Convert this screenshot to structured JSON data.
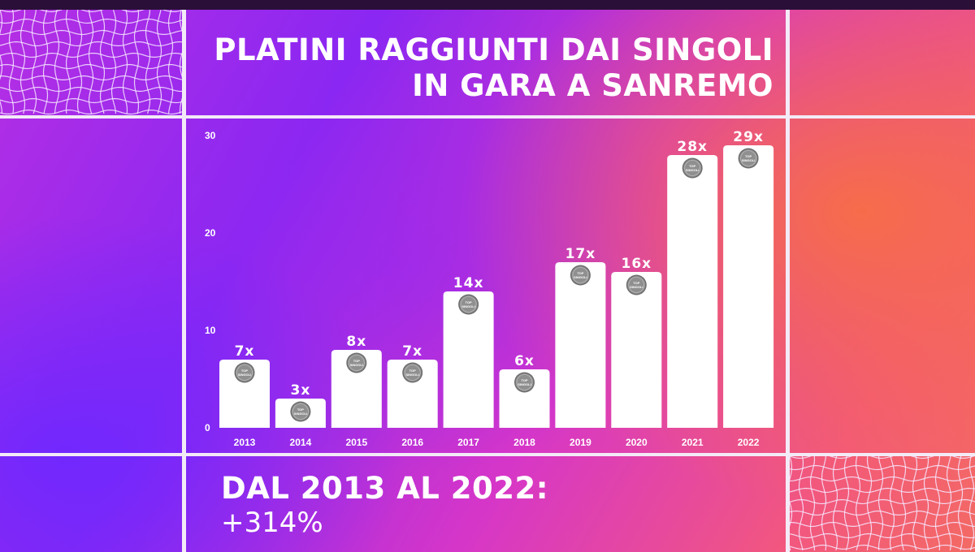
{
  "title_lines": [
    "PLATINI RAGGIUNTI DAI SINGOLI",
    "IN GARA A SANREMO"
  ],
  "footer": {
    "line1": "DAL 2013 AL 2022:",
    "line2": "+314%"
  },
  "medal_text": [
    "TOP",
    "SINGOLI"
  ],
  "colors": {
    "bar": "#ffffff",
    "medal": "#8f8f8f",
    "grid": "#f3eaf7"
  },
  "chart_data": {
    "type": "bar",
    "categories": [
      "2013",
      "2014",
      "2015",
      "2016",
      "2017",
      "2018",
      "2019",
      "2020",
      "2021",
      "2022"
    ],
    "values": [
      7,
      3,
      8,
      7,
      14,
      6,
      17,
      16,
      28,
      29
    ],
    "data_labels": [
      "7x",
      "3x",
      "8x",
      "7x",
      "14x",
      "6x",
      "17x",
      "16x",
      "28x",
      "29x"
    ],
    "y_ticks": [
      0,
      10,
      20,
      30
    ],
    "ylim": [
      0,
      30
    ],
    "title": "PLATINI RAGGIUNTI DAI SINGOLI IN GARA A SANREMO",
    "xlabel": "",
    "ylabel": "",
    "grid": false,
    "legend": "none"
  }
}
